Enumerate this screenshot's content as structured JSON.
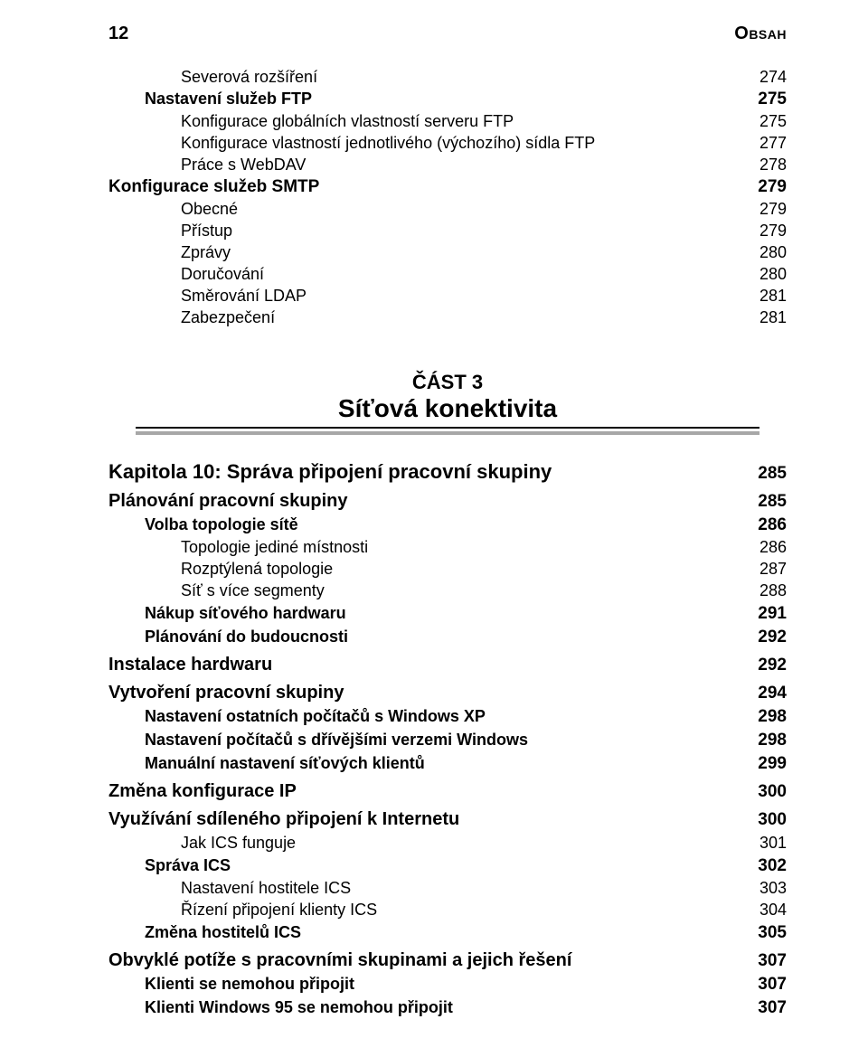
{
  "header": {
    "page_number": "12",
    "title": "Obsah"
  },
  "pre": [
    {
      "cls": "lvl1",
      "label": "Severová rozšíření",
      "page": "274"
    },
    {
      "cls": "lvl0b",
      "label": "Nastavení služeb FTP",
      "page": "275",
      "bold": true
    },
    {
      "cls": "lvl1",
      "label": "Konfigurace globálních vlastností serveru FTP",
      "page": "275"
    },
    {
      "cls": "lvl1",
      "label": "Konfigurace vlastností jednotlivého (výchozího) sídla FTP",
      "page": "277"
    },
    {
      "cls": "lvl1",
      "label": "Práce s WebDAV",
      "page": "278"
    },
    {
      "cls": "lvl1b",
      "label": "Konfigurace služeb SMTP",
      "page": "279",
      "bold": true
    },
    {
      "cls": "lvl1",
      "label": "Obecné",
      "page": "279"
    },
    {
      "cls": "lvl1",
      "label": "Přístup",
      "page": "279"
    },
    {
      "cls": "lvl1",
      "label": "Zprávy",
      "page": "280"
    },
    {
      "cls": "lvl1",
      "label": "Doručování",
      "page": "280"
    },
    {
      "cls": "lvl1",
      "label": "Směrování LDAP",
      "page": "281"
    },
    {
      "cls": "lvl1",
      "label": "Zabezpečení",
      "page": "281"
    }
  ],
  "part": {
    "label": "ČÁST 3",
    "title": "Síťová konektivita"
  },
  "post": [
    {
      "cls": "chapter",
      "label": "Kapitola 10: Správa připojení pracovní skupiny",
      "page": "285",
      "bold": true
    },
    {
      "cls": "sec",
      "label": "Plánování pracovní skupiny",
      "page": "285",
      "bold": true
    },
    {
      "cls": "sub",
      "label": "Volba topologie sítě",
      "page": "286",
      "bold": true
    },
    {
      "cls": "plain",
      "label": "Topologie jediné místnosti",
      "page": "286"
    },
    {
      "cls": "plain",
      "label": "Rozptýlená topologie",
      "page": "287"
    },
    {
      "cls": "plain",
      "label": "Síť s více segmenty",
      "page": "288"
    },
    {
      "cls": "sub",
      "label": "Nákup síťového hardwaru",
      "page": "291",
      "bold": true
    },
    {
      "cls": "sub",
      "label": "Plánování do budoucnosti",
      "page": "292",
      "bold": true
    },
    {
      "cls": "sec",
      "label": "Instalace hardwaru",
      "page": "292",
      "bold": true
    },
    {
      "cls": "sec",
      "label": "Vytvoření pracovní skupiny",
      "page": "294",
      "bold": true
    },
    {
      "cls": "sub",
      "label": "Nastavení ostatních počítačů s Windows XP",
      "page": "298",
      "bold": true
    },
    {
      "cls": "sub",
      "label": "Nastavení počítačů s dřívějšími verzemi Windows",
      "page": "298",
      "bold": true
    },
    {
      "cls": "sub",
      "label": "Manuální nastavení síťových klientů",
      "page": "299",
      "bold": true
    },
    {
      "cls": "sec",
      "label": "Změna konfigurace IP",
      "page": "300",
      "bold": true
    },
    {
      "cls": "sec",
      "label": "Využívání sdíleného připojení k Internetu",
      "page": "300",
      "bold": true
    },
    {
      "cls": "plain",
      "label": "Jak ICS funguje",
      "page": "301"
    },
    {
      "cls": "sub",
      "label": "Správa ICS",
      "page": "302",
      "bold": true
    },
    {
      "cls": "plain",
      "label": "Nastavení hostitele ICS",
      "page": "303"
    },
    {
      "cls": "plain",
      "label": "Řízení připojení klienty ICS",
      "page": "304"
    },
    {
      "cls": "sub",
      "label": "Změna hostitelů ICS",
      "page": "305",
      "bold": true
    },
    {
      "cls": "sec",
      "label": "Obvyklé potíže s pracovními skupinami a jejich řešení",
      "page": "307",
      "bold": true
    },
    {
      "cls": "sub",
      "label": "Klienti se nemohou připojit",
      "page": "307",
      "bold": true
    },
    {
      "cls": "sub",
      "label": "Klienti Windows 95 se nemohou připojit",
      "page": "307",
      "bold": true
    }
  ]
}
